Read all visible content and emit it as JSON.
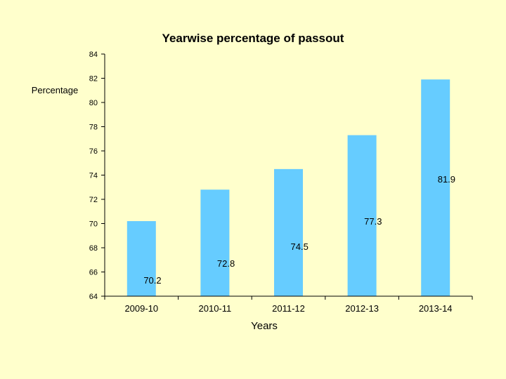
{
  "chart_data": {
    "type": "bar",
    "title": "Yearwise percentage of passout",
    "ylabel": "Percentage",
    "xlabel": "Years",
    "categories": [
      "2009-10",
      "2010-11",
      "2011-12",
      "2012-13",
      "2013-14"
    ],
    "values": [
      70.2,
      72.8,
      74.5,
      77.3,
      81.9
    ],
    "data_labels": [
      "70.2",
      "72.8",
      "74.5",
      "77.3",
      "81.9"
    ],
    "ylim": [
      64,
      84
    ],
    "yticks": [
      "64",
      "66",
      "68",
      "70",
      "72",
      "74",
      "76",
      "78",
      "80",
      "82",
      "84"
    ],
    "grid": false,
    "legend": "none",
    "bar_color": "#66ccff",
    "background_color": "#ffffcc"
  }
}
